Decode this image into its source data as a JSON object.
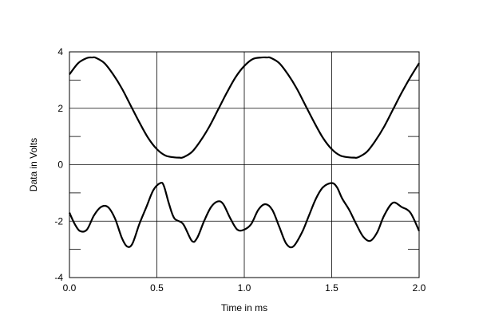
{
  "chart_data": {
    "type": "line",
    "title": "",
    "xlabel": "Time in ms",
    "ylabel": "Data in Volts",
    "xlim": [
      0.0,
      2.0
    ],
    "ylim": [
      -4,
      4
    ],
    "x_ticks": [
      0.0,
      0.5,
      1.0,
      1.5,
      2.0
    ],
    "x_tick_labels": [
      "0.0",
      "0.5",
      "1.0",
      "1.5",
      "2.0"
    ],
    "y_ticks": [
      -4,
      -2,
      0,
      2,
      4
    ],
    "y_tick_labels": [
      "-4",
      "-2",
      "0",
      "2",
      "4"
    ],
    "minor_y_gridlines": [
      -3,
      -1,
      1,
      3
    ],
    "grid": true,
    "legend": "none",
    "line_color": "#000000",
    "series": [
      {
        "x": [
          0.0,
          0.05,
          0.1,
          0.13,
          0.15,
          0.2,
          0.25,
          0.3,
          0.35,
          0.4,
          0.45,
          0.5,
          0.55,
          0.6,
          0.63,
          0.65,
          0.7,
          0.75,
          0.8,
          0.85,
          0.9,
          0.95,
          1.0,
          1.05,
          1.1,
          1.13,
          1.15,
          1.2,
          1.25,
          1.3,
          1.35,
          1.4,
          1.45,
          1.5,
          1.55,
          1.6,
          1.63,
          1.65,
          1.7,
          1.75,
          1.8,
          1.85,
          1.9,
          1.95,
          2.0
        ],
        "values": [
          3.2,
          3.6,
          3.78,
          3.8,
          3.79,
          3.6,
          3.2,
          2.7,
          2.1,
          1.5,
          0.95,
          0.55,
          0.32,
          0.26,
          0.25,
          0.26,
          0.45,
          0.85,
          1.35,
          1.95,
          2.55,
          3.1,
          3.5,
          3.75,
          3.8,
          3.8,
          3.79,
          3.6,
          3.2,
          2.7,
          2.1,
          1.5,
          0.95,
          0.55,
          0.32,
          0.26,
          0.25,
          0.26,
          0.45,
          0.85,
          1.35,
          1.95,
          2.55,
          3.1,
          3.6
        ]
      },
      {
        "x": [
          0.0,
          0.03,
          0.06,
          0.1,
          0.14,
          0.18,
          0.22,
          0.26,
          0.3,
          0.33,
          0.36,
          0.4,
          0.44,
          0.48,
          0.52,
          0.54,
          0.57,
          0.6,
          0.65,
          0.7,
          0.73,
          0.77,
          0.81,
          0.85,
          0.88,
          0.92,
          0.96,
          1.0,
          1.04,
          1.08,
          1.12,
          1.16,
          1.2,
          1.24,
          1.28,
          1.33,
          1.37,
          1.41,
          1.45,
          1.5,
          1.53,
          1.56,
          1.6,
          1.64,
          1.68,
          1.72,
          1.76,
          1.8,
          1.85,
          1.9,
          1.95,
          2.0
        ],
        "values": [
          -1.7,
          -2.1,
          -2.35,
          -2.3,
          -1.8,
          -1.5,
          -1.5,
          -1.9,
          -2.6,
          -2.9,
          -2.8,
          -2.1,
          -1.5,
          -0.9,
          -0.65,
          -0.75,
          -1.4,
          -1.9,
          -2.1,
          -2.7,
          -2.6,
          -2.0,
          -1.5,
          -1.3,
          -1.4,
          -1.9,
          -2.3,
          -2.3,
          -2.1,
          -1.6,
          -1.4,
          -1.6,
          -2.2,
          -2.8,
          -2.9,
          -2.4,
          -1.8,
          -1.2,
          -0.8,
          -0.65,
          -0.8,
          -1.2,
          -1.6,
          -2.1,
          -2.55,
          -2.7,
          -2.4,
          -1.8,
          -1.35,
          -1.5,
          -1.7,
          -2.35
        ]
      }
    ]
  }
}
